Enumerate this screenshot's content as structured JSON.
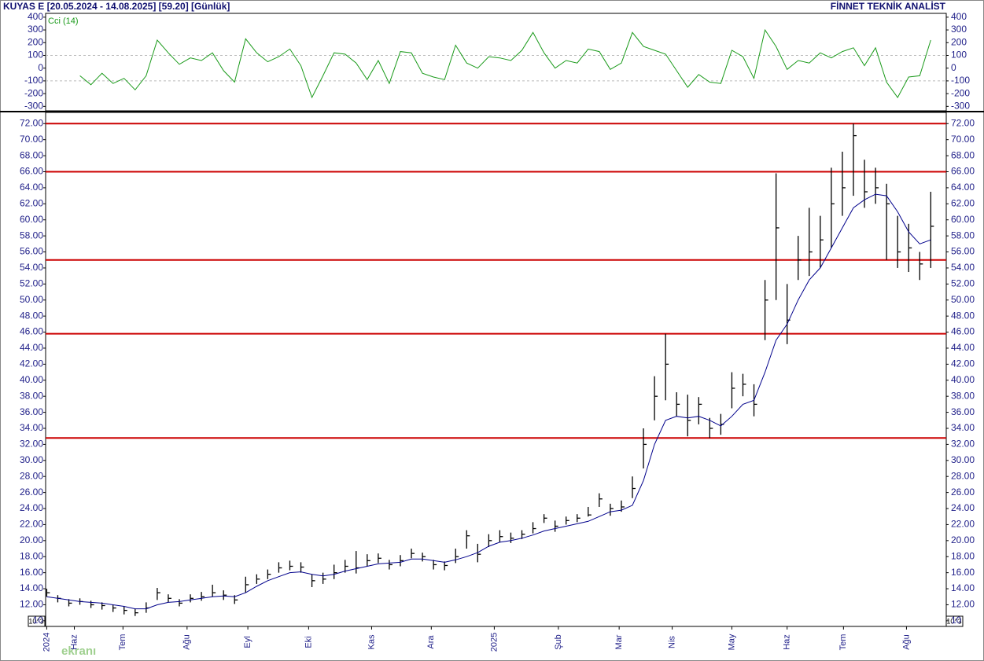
{
  "header": {
    "title": "KUYAS E  [20.05.2024 - 14.08.2025]  [59.20]  [Günlük]",
    "source": "FİNNET TEKNİK ANALİST",
    "scale_note": "10^3",
    "watermark": "ekranı"
  },
  "chart_data": [
    {
      "type": "line",
      "label": "Cci (14)",
      "color": "#1a9a1a",
      "label_color": "#1a9a1a",
      "xlim": [
        -0.1,
        81.4
      ],
      "ylim": [
        -335,
        430
      ],
      "yticks": [
        400,
        300,
        200,
        100,
        0,
        -100,
        -200,
        -300
      ],
      "dashed_lines": [
        100,
        -100
      ],
      "values": [
        null,
        null,
        null,
        -60,
        -130,
        -40,
        -120,
        -80,
        -170,
        -60,
        220,
        120,
        30,
        80,
        60,
        120,
        -20,
        -110,
        230,
        120,
        50,
        90,
        150,
        20,
        -230,
        -60,
        120,
        110,
        40,
        -90,
        60,
        -120,
        130,
        120,
        -40,
        -70,
        -90,
        180,
        40,
        0,
        90,
        80,
        60,
        140,
        280,
        120,
        0,
        60,
        40,
        150,
        130,
        -10,
        40,
        280,
        170,
        140,
        110,
        -20,
        -150,
        -50,
        -110,
        -120,
        140,
        90,
        -80,
        300,
        170,
        -10,
        60,
        40,
        120,
        80,
        130,
        160,
        20,
        160,
        -110,
        -230,
        -70,
        -60,
        220
      ]
    },
    {
      "type": "ohlc",
      "color": "#000000",
      "xlim": [
        -0.1,
        81.4
      ],
      "ylim": [
        9.3,
        73.4
      ],
      "xticks": [
        {
          "value": 0,
          "label": "2024"
        },
        {
          "value": 2.5,
          "label": "Haz"
        },
        {
          "value": 6.9,
          "label": "Tem"
        },
        {
          "value": 12.7,
          "label": "Ağu"
        },
        {
          "value": 18.2,
          "label": "Eyl"
        },
        {
          "value": 23.7,
          "label": "Eki"
        },
        {
          "value": 29.4,
          "label": "Kas"
        },
        {
          "value": 34.8,
          "label": "Ara"
        },
        {
          "value": 40.5,
          "label": "2025"
        },
        {
          "value": 46.3,
          "label": "Şub"
        },
        {
          "value": 51.8,
          "label": "Mar"
        },
        {
          "value": 56.6,
          "label": "Nis"
        },
        {
          "value": 62,
          "label": "May"
        },
        {
          "value": 67,
          "label": "Haz"
        },
        {
          "value": 72.1,
          "label": "Tem"
        },
        {
          "value": 77.8,
          "label": "Ağu"
        }
      ],
      "yticks": [
        {
          "value": 10,
          "label": "10"
        },
        {
          "value": 12,
          "label": "12.00"
        },
        {
          "value": 14,
          "label": "14.00"
        },
        {
          "value": 16,
          "label": "16.00"
        },
        {
          "value": 18,
          "label": "18.00"
        },
        {
          "value": 20,
          "label": "20.00"
        },
        {
          "value": 22,
          "label": "22.00"
        },
        {
          "value": 24,
          "label": "24.00"
        },
        {
          "value": 26,
          "label": "26.00"
        },
        {
          "value": 28,
          "label": "28.00"
        },
        {
          "value": 30,
          "label": "30.00"
        },
        {
          "value": 32,
          "label": "32.00"
        },
        {
          "value": 34,
          "label": "34.00"
        },
        {
          "value": 36,
          "label": "36.00"
        },
        {
          "value": 38,
          "label": "38.00"
        },
        {
          "value": 40,
          "label": "40.00"
        },
        {
          "value": 42,
          "label": "42.00"
        },
        {
          "value": 44,
          "label": "44.00"
        },
        {
          "value": 46,
          "label": "46.00"
        },
        {
          "value": 48,
          "label": "48.00"
        },
        {
          "value": 50,
          "label": "50.00"
        },
        {
          "value": 52,
          "label": "52.00"
        },
        {
          "value": 54,
          "label": "54.00"
        },
        {
          "value": 56,
          "label": "56.00"
        },
        {
          "value": 58,
          "label": "58.00"
        },
        {
          "value": 60,
          "label": "60.00"
        },
        {
          "value": 62,
          "label": "62.00"
        },
        {
          "value": 64,
          "label": "64.00"
        },
        {
          "value": 66,
          "label": "66.00"
        },
        {
          "value": 68,
          "label": "68.00"
        },
        {
          "value": 70,
          "label": "70.00"
        },
        {
          "value": 72,
          "label": "72.00"
        }
      ],
      "hlines": [
        72,
        66,
        55,
        45.8,
        32.8
      ],
      "hline_color": "#cc0000",
      "high": [
        14.0,
        13.2,
        12.7,
        12.8,
        12.5,
        12.3,
        12.0,
        11.8,
        11.5,
        12.3,
        14.1,
        13.3,
        12.7,
        13.3,
        13.6,
        14.5,
        13.8,
        13.2,
        15.5,
        15.8,
        16.4,
        17.3,
        17.5,
        17.3,
        15.8,
        16.0,
        17.0,
        17.6,
        18.7,
        18.3,
        18.4,
        17.6,
        18.2,
        19.0,
        18.5,
        17.6,
        17.4,
        19.0,
        21.3,
        19.6,
        20.8,
        21.3,
        21.0,
        21.3,
        22.3,
        23.3,
        22.5,
        23.0,
        23.3,
        24.2,
        25.9,
        24.6,
        25.0,
        28.0,
        34.0,
        40.5,
        45.8,
        38.5,
        38.2,
        37.9,
        35.3,
        35.8,
        41.0,
        40.8,
        39.5,
        52.5,
        65.8,
        52.0,
        58.0,
        61.5,
        60.5,
        66.5,
        68.5,
        72.0,
        67.5,
        66.5,
        64.5,
        60.5,
        59.5,
        56.0,
        63.5
      ],
      "low": [
        13.0,
        12.3,
        11.8,
        12.0,
        11.6,
        11.4,
        11.1,
        10.8,
        10.6,
        11.0,
        12.6,
        12.3,
        11.8,
        12.3,
        12.5,
        13.0,
        12.6,
        12.1,
        13.5,
        14.6,
        15.2,
        16.0,
        16.3,
        16.0,
        14.2,
        14.6,
        15.2,
        16.0,
        15.9,
        16.8,
        17.2,
        16.4,
        16.8,
        17.8,
        17.4,
        16.4,
        16.3,
        17.2,
        19.0,
        17.3,
        19.2,
        19.8,
        19.7,
        20.2,
        20.9,
        22.2,
        21.1,
        22.0,
        22.3,
        23.0,
        24.2,
        23.1,
        23.6,
        25.3,
        29.0,
        35.0,
        37.5,
        35.5,
        33.0,
        34.5,
        32.8,
        33.2,
        36.5,
        38.0,
        35.5,
        45.0,
        50.0,
        44.5,
        52.5,
        53.0,
        54.0,
        56.5,
        60.5,
        63.0,
        61.5,
        62.0,
        55.0,
        54.0,
        53.5,
        52.5,
        54.0
      ],
      "close": [
        13.5,
        12.8,
        12.2,
        12.4,
        12.0,
        11.9,
        11.6,
        11.3,
        11.0,
        11.6,
        13.5,
        12.8,
        12.2,
        12.8,
        13.0,
        13.5,
        13.2,
        12.6,
        14.5,
        15.2,
        15.8,
        16.6,
        16.8,
        16.7,
        15.0,
        15.2,
        16.0,
        16.8,
        16.6,
        17.5,
        17.8,
        17.0,
        17.5,
        18.4,
        18.0,
        17.0,
        16.9,
        18.0,
        20.6,
        18.3,
        20.0,
        20.5,
        20.3,
        20.8,
        21.5,
        22.8,
        21.8,
        22.5,
        22.8,
        23.2,
        25.2,
        24.0,
        24.2,
        26.5,
        32.0,
        38.0,
        42.0,
        37.0,
        35.0,
        37.0,
        34.0,
        34.5,
        39.0,
        39.5,
        37.0,
        50.0,
        59.0,
        47.5,
        55.0,
        56.0,
        57.5,
        62.0,
        64.0,
        70.5,
        63.5,
        64.0,
        62.0,
        56.0,
        56.5,
        54.5,
        59.2
      ],
      "series": [
        {
          "color": "#00008b",
          "values": [
            13.0,
            12.8,
            12.6,
            12.4,
            12.3,
            12.2,
            12.0,
            11.8,
            11.5,
            11.5,
            12.0,
            12.3,
            12.4,
            12.6,
            12.8,
            13.0,
            13.1,
            13.0,
            13.5,
            14.3,
            15.0,
            15.5,
            16.0,
            16.1,
            15.8,
            15.6,
            15.8,
            16.2,
            16.5,
            16.8,
            17.1,
            17.2,
            17.3,
            17.7,
            17.7,
            17.5,
            17.3,
            17.6,
            18.0,
            18.5,
            19.3,
            19.8,
            20.0,
            20.3,
            20.7,
            21.2,
            21.5,
            21.8,
            22.1,
            22.4,
            23.0,
            23.6,
            23.8,
            24.4,
            27.5,
            32.0,
            35.0,
            35.5,
            35.3,
            35.5,
            35.0,
            34.3,
            35.5,
            37.0,
            37.5,
            41.0,
            45.0,
            47.0,
            50.0,
            52.5,
            54.0,
            56.5,
            59.0,
            61.5,
            62.5,
            63.2,
            63.0,
            61.0,
            58.5,
            57.0,
            57.5
          ]
        }
      ]
    }
  ]
}
